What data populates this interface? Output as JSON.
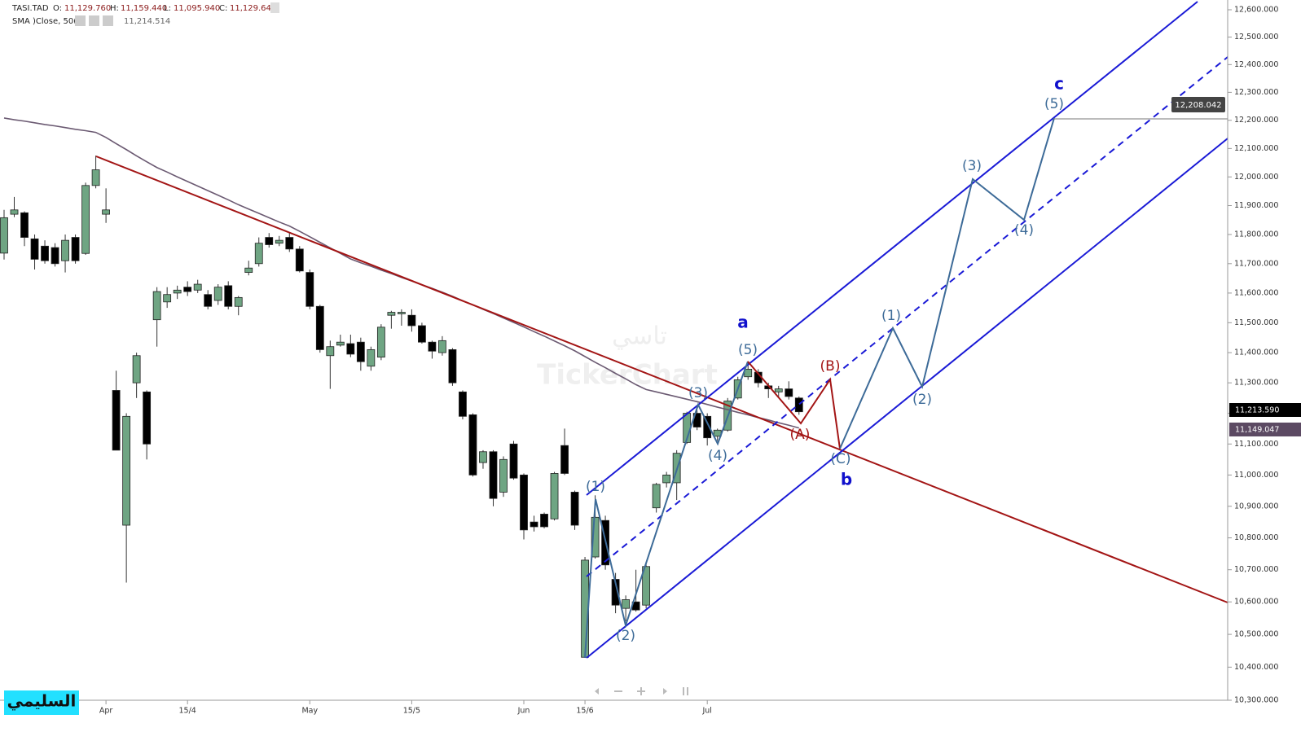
{
  "chart_data": {
    "type": "candlestick",
    "log": true,
    "header": {
      "symbol": "TASI.TAD",
      "fields": [
        {
          "key": "O:",
          "value": "11,129.760"
        },
        {
          "key": "H:",
          "value": "11,159.440"
        },
        {
          "key": "L:",
          "value": "11,095.940"
        },
        {
          "key": "C:",
          "value": "11,129.640"
        }
      ],
      "indicator_value": "11,214.514"
    },
    "watermark": [
      "تاسي",
      "TickerChart"
    ],
    "badge": "السليمي",
    "up_color": "#6fa583",
    "down_color": "#000000",
    "last_price_label": "11,213.590",
    "target_label": "12,208.042",
    "annotations": [
      "(1)",
      "(2)",
      "(3)",
      "(4)",
      "(5)",
      "a",
      "(A)",
      "(B)",
      "(C)",
      "b",
      "(1)",
      "(2)",
      "(3)",
      "(4)",
      "(5)",
      "c"
    ],
    "categories": [
      null,
      null,
      null,
      null,
      null,
      null,
      null,
      null,
      null,
      null,
      "Apr",
      null,
      null,
      null,
      null,
      null,
      null,
      null,
      "15/4",
      null,
      null,
      null,
      null,
      null,
      null,
      null,
      null,
      null,
      null,
      null,
      "May",
      null,
      null,
      null,
      null,
      null,
      null,
      null,
      null,
      null,
      "15/5",
      null,
      null,
      null,
      null,
      null,
      null,
      null,
      null,
      null,
      null,
      "Jun",
      null,
      null,
      null,
      null,
      null,
      "15/6",
      null,
      null,
      null,
      null,
      null,
      null,
      null,
      null,
      null,
      null,
      null,
      "Jul",
      null,
      null,
      null,
      null,
      null,
      null,
      null,
      null,
      null
    ],
    "open": [
      11736,
      11870,
      11875,
      11785,
      11760,
      11755,
      11710,
      11790,
      11735,
      11970,
      11870,
      11275,
      10840,
      11300,
      11270,
      11510,
      11570,
      11600,
      11620,
      11610,
      11595,
      11575,
      11625,
      11555,
      11670,
      11700,
      11790,
      11770,
      11790,
      11750,
      11670,
      11555,
      11390,
      11425,
      11430,
      11435,
      11355,
      11385,
      11525,
      11530,
      11525,
      11490,
      11435,
      11400,
      11410,
      11270,
      11195,
      11040,
      11075,
      10945,
      11100,
      11000,
      10850,
      10875,
      10860,
      11095,
      10945,
      10430,
      10740,
      10855,
      10670,
      10580,
      10600,
      10590,
      10895,
      10975,
      10975,
      11105,
      11200,
      11190,
      11125,
      11145,
      11250,
      11320,
      11335,
      11290,
      11270,
      11280,
      11250
    ],
    "high": [
      11885,
      11930,
      11880,
      11800,
      11780,
      11770,
      11800,
      11800,
      11980,
      12075,
      11960,
      11340,
      11200,
      11400,
      11275,
      11620,
      11620,
      11625,
      11640,
      11645,
      11610,
      11630,
      11640,
      11590,
      11710,
      11790,
      11805,
      11795,
      11805,
      11760,
      11680,
      11560,
      11440,
      11460,
      11460,
      11450,
      11420,
      11495,
      11540,
      11545,
      11545,
      11500,
      11440,
      11455,
      11415,
      11275,
      11200,
      11080,
      11080,
      11060,
      11110,
      11005,
      10870,
      10880,
      11010,
      11150,
      10950,
      10740,
      10935,
      10870,
      10690,
      10620,
      10700,
      10720,
      10975,
      11010,
      11080,
      11205,
      11210,
      11200,
      11150,
      11250,
      11320,
      11370,
      11345,
      11300,
      11290,
      11305,
      11255
    ],
    "low": [
      11714,
      11860,
      11760,
      11680,
      11700,
      11690,
      11670,
      11700,
      11730,
      11960,
      11840,
      11080,
      10660,
      11250,
      11050,
      11420,
      11550,
      11580,
      11590,
      11600,
      11545,
      11560,
      11545,
      11525,
      11660,
      11690,
      11755,
      11760,
      11740,
      11670,
      11545,
      11400,
      11280,
      11420,
      11385,
      11340,
      11340,
      11375,
      11480,
      11490,
      11470,
      11430,
      11380,
      11390,
      11290,
      11180,
      10995,
      11020,
      10900,
      10930,
      10985,
      10795,
      10820,
      10830,
      10855,
      11000,
      10825,
      10430,
      10735,
      10700,
      10565,
      10540,
      10570,
      10580,
      10880,
      10960,
      10920,
      11100,
      11145,
      11095,
      11110,
      11140,
      11245,
      11310,
      11285,
      11250,
      11255,
      11245,
      11195
    ],
    "close": [
      11858,
      11885,
      11790,
      11715,
      11710,
      11700,
      11780,
      11710,
      11970,
      12025,
      11885,
      11080,
      11190,
      11390,
      11100,
      11605,
      11595,
      11610,
      11605,
      11630,
      11555,
      11620,
      11555,
      11585,
      11685,
      11770,
      11765,
      11780,
      11750,
      11675,
      11555,
      11410,
      11420,
      11435,
      11395,
      11370,
      11410,
      11485,
      11535,
      11535,
      11490,
      11435,
      11405,
      11440,
      11300,
      11190,
      11000,
      11075,
      10925,
      11050,
      10990,
      10825,
      10835,
      10835,
      11005,
      11005,
      10840,
      10730,
      10865,
      10715,
      10590,
      10607,
      10575,
      10710,
      10970,
      11000,
      11070,
      11200,
      11155,
      11120,
      11145,
      11240,
      11310,
      11345,
      11300,
      11280,
      11280,
      11255,
      11205
    ],
    "series": [
      {
        "name": "SMA )Close, 50(",
        "color": "#6b5a72",
        "last_label": "11,149.047",
        "values": [
          12208,
          12202,
          12197,
          12191,
          12185,
          12180,
          12174,
          12168,
          12163,
          12157,
          12139,
          12117,
          12096,
          12074,
          12053,
          12033,
          12017,
          12000,
          11984,
          11968,
          11952,
          11936,
          11920,
          11903,
          11888,
          11873,
          11858,
          11843,
          11829,
          11811,
          11792,
          11773,
          11754,
          11735,
          11716,
          11703,
          11691,
          11678,
          11666,
          11653,
          11641,
          11628,
          11616,
          11603,
          11589,
          11574,
          11560,
          11545,
          11531,
          11516,
          11501,
          11486,
          11470,
          11455,
          11439,
          11423,
          11406,
          11387,
          11368,
          11350,
          11331,
          11313,
          11294,
          11278,
          11270,
          11262,
          11254,
          11246,
          11238,
          11229,
          11220,
          11212,
          11203,
          11195,
          11186,
          11178,
          11169,
          11161,
          11152
        ]
      }
    ],
    "ylim": [
      10300,
      12600
    ],
    "yticks": [
      {
        "value": 10300,
        "label": "10,300.000"
      },
      {
        "value": 10400,
        "label": "10,400.000"
      },
      {
        "value": 10500,
        "label": "10,500.000"
      },
      {
        "value": 10600,
        "label": "10,600.000"
      },
      {
        "value": 10700,
        "label": "10,700.000"
      },
      {
        "value": 10800,
        "label": "10,800.000"
      },
      {
        "value": 10900,
        "label": "10,900.000"
      },
      {
        "value": 11000,
        "label": "11,000.000"
      },
      {
        "value": 11100,
        "label": "11,100.000"
      },
      {
        "value": 11200,
        "label": "11,200.000"
      },
      {
        "value": 11300,
        "label": "11,300.000"
      },
      {
        "value": 11400,
        "label": "11,400.000"
      },
      {
        "value": 11500,
        "label": "11,500.000"
      },
      {
        "value": 11600,
        "label": "11,600.000"
      },
      {
        "value": 11700,
        "label": "11,700.000"
      },
      {
        "value": 11800,
        "label": "11,800.000"
      },
      {
        "value": 11900,
        "label": "11,900.000"
      },
      {
        "value": 12000,
        "label": "12,000.000"
      },
      {
        "value": 12100,
        "label": "12,100.000"
      },
      {
        "value": 12200,
        "label": "12,200.000"
      },
      {
        "value": 12300,
        "label": "12,300.000"
      },
      {
        "value": 12400,
        "label": "12,400.000"
      },
      {
        "value": 12500,
        "label": "12,500.000"
      },
      {
        "value": 12600,
        "label": "12,600.000"
      }
    ]
  }
}
